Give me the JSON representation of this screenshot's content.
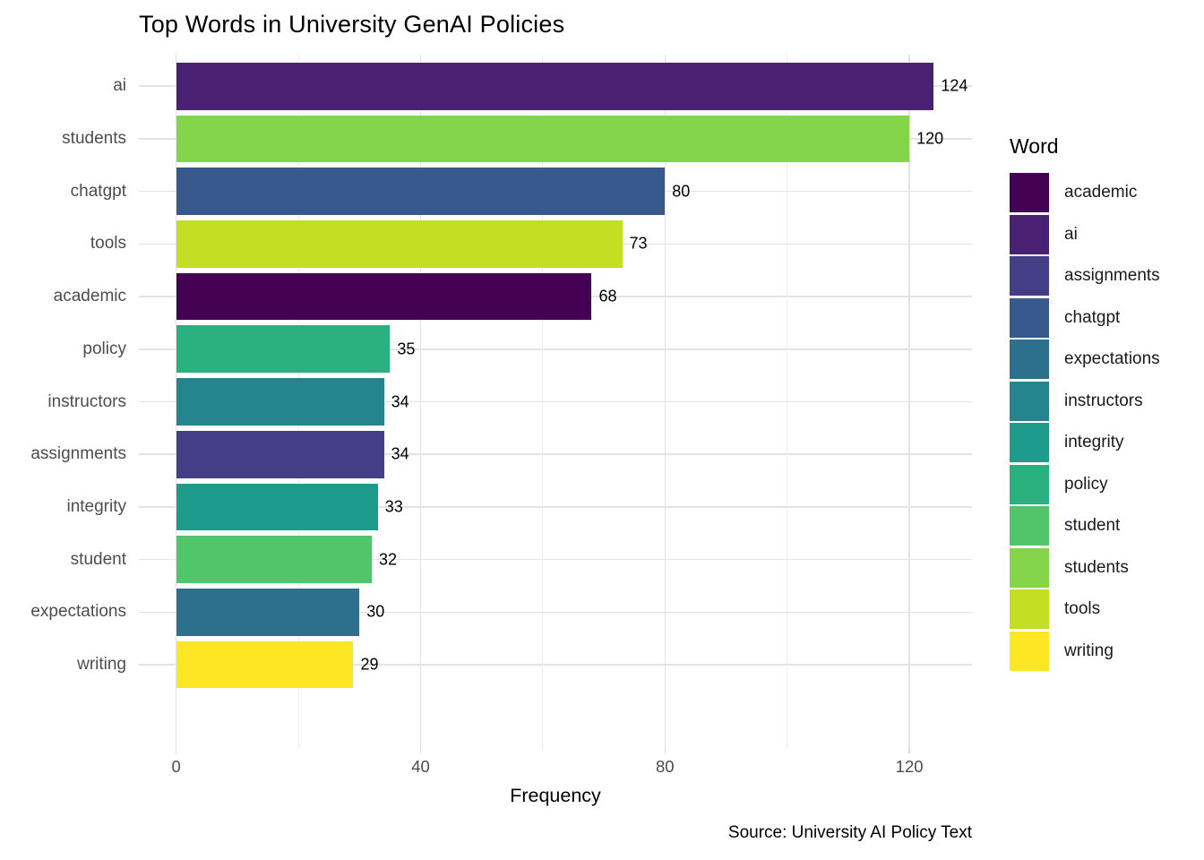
{
  "page": {
    "background": "#ffffff"
  },
  "chart_data": {
    "type": "bar",
    "orientation": "horizontal",
    "title": "Top Words in University GenAI Policies",
    "xlabel": "Frequency",
    "ylabel": "",
    "caption": "Source: University AI Policy Text",
    "categories": [
      "ai",
      "students",
      "chatgpt",
      "tools",
      "academic",
      "policy",
      "instructors",
      "assignments",
      "integrity",
      "student",
      "expectations",
      "writing"
    ],
    "values": [
      124,
      120,
      80,
      73,
      68,
      35,
      34,
      34,
      33,
      32,
      30,
      29
    ],
    "bar_colors": [
      "#482173",
      "#85D54A",
      "#38598C",
      "#C2DF23",
      "#440154",
      "#2BB07F",
      "#25858E",
      "#433E85",
      "#1E9B8A",
      "#51C56A",
      "#2D708E",
      "#FDE725"
    ],
    "value_labels": [
      "124",
      "120",
      "80",
      "73",
      "68",
      "35",
      "34",
      "34",
      "33",
      "32",
      "30",
      "29"
    ],
    "x_major_ticks": [
      0,
      40,
      80,
      120
    ],
    "x_minor_ticks": [
      20,
      60,
      100
    ],
    "xlim": [
      0,
      131
    ],
    "grid": "major and minor vertical, major horizontal per category",
    "legend_position": "right",
    "palette": "viridis"
  },
  "legend": {
    "title": "Word",
    "items": [
      {
        "label": "academic",
        "color": "#440154"
      },
      {
        "label": "ai",
        "color": "#482173"
      },
      {
        "label": "assignments",
        "color": "#433E85"
      },
      {
        "label": "chatgpt",
        "color": "#38598C"
      },
      {
        "label": "expectations",
        "color": "#2D708E"
      },
      {
        "label": "instructors",
        "color": "#25858E"
      },
      {
        "label": "integrity",
        "color": "#1E9B8A"
      },
      {
        "label": "policy",
        "color": "#2BB07F"
      },
      {
        "label": "student",
        "color": "#51C56A"
      },
      {
        "label": "students",
        "color": "#85D54A"
      },
      {
        "label": "tools",
        "color": "#C2DF23"
      },
      {
        "label": "writing",
        "color": "#FDE725"
      }
    ]
  },
  "colors": {
    "grid_major": "#e3e3e3",
    "grid_minor": "#ededed",
    "axis_text": "#4d4d4d",
    "text": "#000000",
    "background": "#ffffff"
  }
}
